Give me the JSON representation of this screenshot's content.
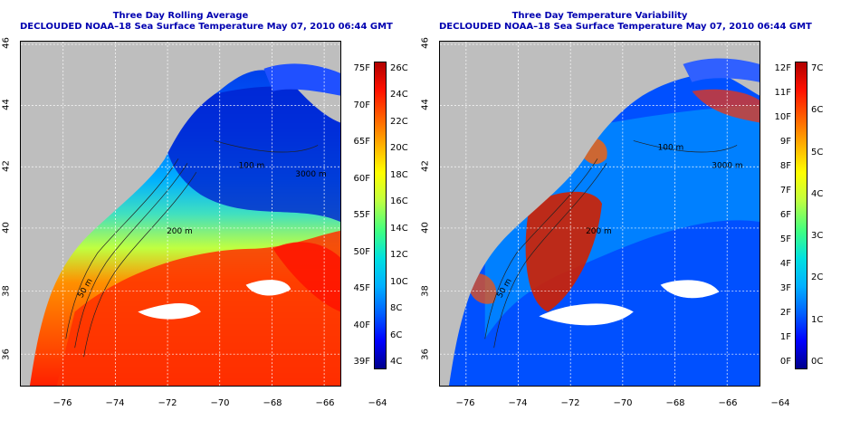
{
  "left_panel": {
    "title": "Three Day Rolling Average",
    "subtitle": "DECLOUDED NOAA–18 Sea Surface Temperature May 07, 2010 06:44 GMT",
    "colorbar_left_labels": [
      "39F",
      "40F",
      "45F",
      "50F",
      "55F",
      "60F",
      "65F",
      "70F",
      "75F"
    ],
    "colorbar_right_labels": [
      "4C",
      "6C",
      "8C",
      "10C",
      "12C",
      "14C",
      "16C",
      "18C",
      "20C",
      "22C",
      "24C",
      "26C"
    ],
    "contour_labels": [
      "200 m",
      "50 m",
      "100 m",
      "3000 m"
    ],
    "colors": [
      "#00008b",
      "#0000ff",
      "#0060ff",
      "#00b0ff",
      "#00e0e0",
      "#40ff80",
      "#c0ff40",
      "#ffff00",
      "#ffb000",
      "#ff6000",
      "#ff1000",
      "#b00000"
    ]
  },
  "right_panel": {
    "title": "Three Day Temperature Variability",
    "subtitle": "DECLOUDED NOAA–18 Sea Surface Temperature May 07, 2010 06:44 GMT",
    "colorbar_left_labels": [
      "0F",
      "1F",
      "2F",
      "3F",
      "4F",
      "5F",
      "6F",
      "7F",
      "8F",
      "9F",
      "10F",
      "11F",
      "12F"
    ],
    "colorbar_right_labels": [
      "0C",
      "1C",
      "2C",
      "3C",
      "4C",
      "5C",
      "6C",
      "7C"
    ],
    "contour_labels": [
      "200 m",
      "50 m",
      "100 m",
      "3000 m"
    ],
    "colors": [
      "#00008b",
      "#0000ff",
      "#0060ff",
      "#00b0ff",
      "#00e0e0",
      "#40ff80",
      "#c0ff40",
      "#ffff00",
      "#ffb000",
      "#ff6000",
      "#ff1000",
      "#b00000"
    ]
  },
  "axes": {
    "lat_labels": [
      "36",
      "38",
      "40",
      "42",
      "44",
      "46"
    ],
    "lon_labels": [
      "−76",
      "−74",
      "−72",
      "−70",
      "−68",
      "−66",
      "−64"
    ]
  }
}
